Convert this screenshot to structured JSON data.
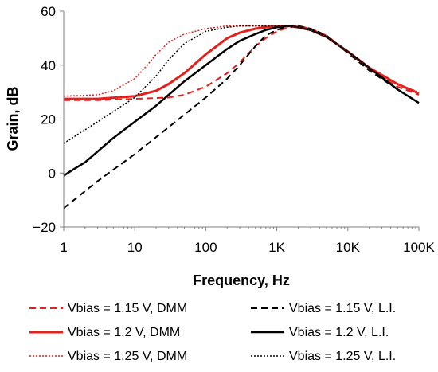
{
  "chart_data": {
    "type": "line",
    "xscale": "log",
    "xlim": [
      1,
      100000
    ],
    "ylim": [
      -20,
      60
    ],
    "grid": false,
    "legend_position": "bottom",
    "xlabel": "Frequency, Hz",
    "ylabel": "Grain, dB",
    "x_ticks": [
      1,
      10,
      100,
      1000,
      10000,
      100000
    ],
    "x_tick_labels": [
      "1",
      "10",
      "100",
      "1K",
      "10K",
      "100K"
    ],
    "y_ticks": [
      -20,
      0,
      20,
      40,
      60
    ],
    "y_tick_labels": [
      "−20",
      "0",
      "20",
      "40",
      "60"
    ],
    "series": [
      {
        "name": "Vbias = 1.15 V, DMM",
        "color": "#e3211c",
        "dash": "dashed",
        "width": 2,
        "x": [
          1,
          3,
          10,
          30,
          50,
          100,
          200,
          300,
          500,
          700,
          1000,
          1500,
          2000,
          3000,
          5000,
          10000,
          20000,
          50000,
          100000
        ],
        "y": [
          27,
          27,
          27.5,
          28,
          29,
          32,
          37,
          41,
          47,
          50,
          52.5,
          54,
          54.5,
          53.5,
          51,
          45,
          38.5,
          32,
          29
        ]
      },
      {
        "name": "Vbias = 1.15 V, L.I.",
        "color": "#000000",
        "dash": "dashed",
        "width": 2,
        "x": [
          1,
          3,
          10,
          30,
          100,
          200,
          300,
          500,
          700,
          1000,
          1500,
          2000,
          3000,
          5000,
          10000,
          20000,
          50000,
          100000
        ],
        "y": [
          -13,
          -3,
          7,
          17,
          28,
          35,
          40,
          47,
          51,
          53,
          54.5,
          54.5,
          53.5,
          51,
          44.5,
          38,
          31,
          26
        ]
      },
      {
        "name": "Vbias = 1.2 V, DMM",
        "color": "#e3211c",
        "dash": "solid",
        "width": 3,
        "x": [
          1,
          3,
          10,
          20,
          30,
          50,
          100,
          200,
          300,
          500,
          700,
          1000,
          1500,
          2000,
          3000,
          5000,
          10000,
          20000,
          50000,
          100000
        ],
        "y": [
          27.5,
          27.5,
          28.5,
          30.5,
          33,
          37,
          44,
          50,
          52,
          53.5,
          54,
          54.5,
          54.5,
          54,
          53,
          50.5,
          45,
          39,
          33,
          29.5
        ]
      },
      {
        "name": "Vbias = 1.2 V, L.I.",
        "color": "#000000",
        "dash": "solid",
        "width": 2.5,
        "x": [
          1,
          1.3,
          2,
          3,
          5,
          10,
          20,
          30,
          50,
          100,
          200,
          300,
          500,
          700,
          1000,
          1500,
          2000,
          3000,
          5000,
          10000,
          20000,
          50000,
          100000
        ],
        "y": [
          -1,
          1,
          4,
          8,
          13,
          19,
          25,
          29,
          34,
          40,
          46,
          49,
          51.5,
          53,
          54,
          54.5,
          54,
          53,
          50.5,
          45,
          39,
          31,
          26
        ]
      },
      {
        "name": "Vbias = 1.25 V, DMM",
        "color": "#e3211c",
        "dash": "dotted",
        "width": 1.5,
        "x": [
          1,
          3,
          5,
          10,
          15,
          20,
          30,
          50,
          100,
          200,
          300,
          500,
          1000,
          2000,
          3000,
          5000,
          10000,
          20000,
          50000,
          100000
        ],
        "y": [
          28.5,
          29,
          30.5,
          35,
          40,
          44,
          48.5,
          51.5,
          53.5,
          54.5,
          54.5,
          54.5,
          54.5,
          54,
          53,
          50.5,
          45,
          39,
          33,
          30
        ]
      },
      {
        "name": "Vbias = 1.25 V, L.I.",
        "color": "#000000",
        "dash": "dotted",
        "width": 1.5,
        "x": [
          1,
          3,
          10,
          20,
          30,
          50,
          100,
          200,
          300,
          500,
          1000,
          2000,
          3000,
          5000,
          10000,
          20000,
          50000,
          100000
        ],
        "y": [
          11,
          19,
          28,
          36,
          42,
          48,
          52.5,
          54,
          54.5,
          54.5,
          54.5,
          54,
          53,
          50.5,
          45,
          39,
          31,
          26
        ]
      }
    ],
    "legend": [
      {
        "label": "Vbias = 1.15 V, DMM",
        "series": 0
      },
      {
        "label": "Vbias = 1.15 V, L.I.",
        "series": 1
      },
      {
        "label": "Vbias = 1.2 V, DMM",
        "series": 2
      },
      {
        "label": "Vbias = 1.2 V, L.I.",
        "series": 3
      },
      {
        "label": "Vbias = 1.25 V, DMM",
        "series": 4
      },
      {
        "label": "Vbias = 1.25 V, L.I.",
        "series": 5
      }
    ]
  }
}
